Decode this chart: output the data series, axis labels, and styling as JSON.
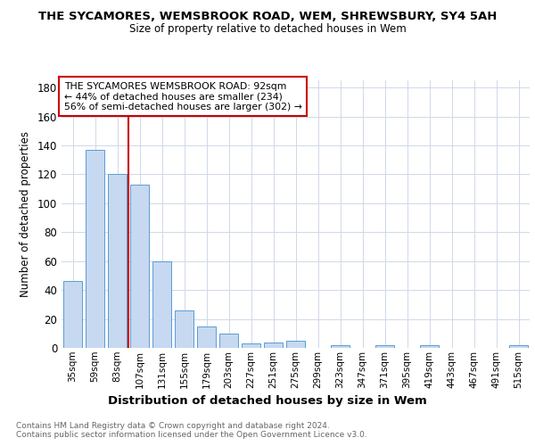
{
  "title": "THE SYCAMORES, WEMSBROOK ROAD, WEM, SHREWSBURY, SY4 5AH",
  "subtitle": "Size of property relative to detached houses in Wem",
  "xlabel": "Distribution of detached houses by size in Wem",
  "ylabel": "Number of detached properties",
  "categories": [
    "35sqm",
    "59sqm",
    "83sqm",
    "107sqm",
    "131sqm",
    "155sqm",
    "179sqm",
    "203sqm",
    "227sqm",
    "251sqm",
    "275sqm",
    "299sqm",
    "323sqm",
    "347sqm",
    "371sqm",
    "395sqm",
    "419sqm",
    "443sqm",
    "467sqm",
    "491sqm",
    "515sqm"
  ],
  "values": [
    46,
    137,
    120,
    113,
    60,
    26,
    15,
    10,
    3,
    4,
    5,
    0,
    2,
    0,
    2,
    0,
    2,
    0,
    0,
    0,
    2
  ],
  "bar_color": "#c6d9f0",
  "bar_edge_color": "#5b9bd5",
  "ylim": [
    0,
    185
  ],
  "yticks": [
    0,
    20,
    40,
    60,
    80,
    100,
    120,
    140,
    160,
    180
  ],
  "vline_x_index": 2.5,
  "annotation_line1": "THE SYCAMORES WEMSBROOK ROAD: 92sqm",
  "annotation_line2": "← 44% of detached houses are smaller (234)",
  "annotation_line3": "56% of semi-detached houses are larger (302) →",
  "vline_color": "#cc0000",
  "annotation_box_edge": "#cc0000",
  "footer_line1": "Contains HM Land Registry data © Crown copyright and database right 2024.",
  "footer_line2": "Contains public sector information licensed under the Open Government Licence v3.0.",
  "background_color": "#ffffff",
  "grid_color": "#d0d8e8"
}
